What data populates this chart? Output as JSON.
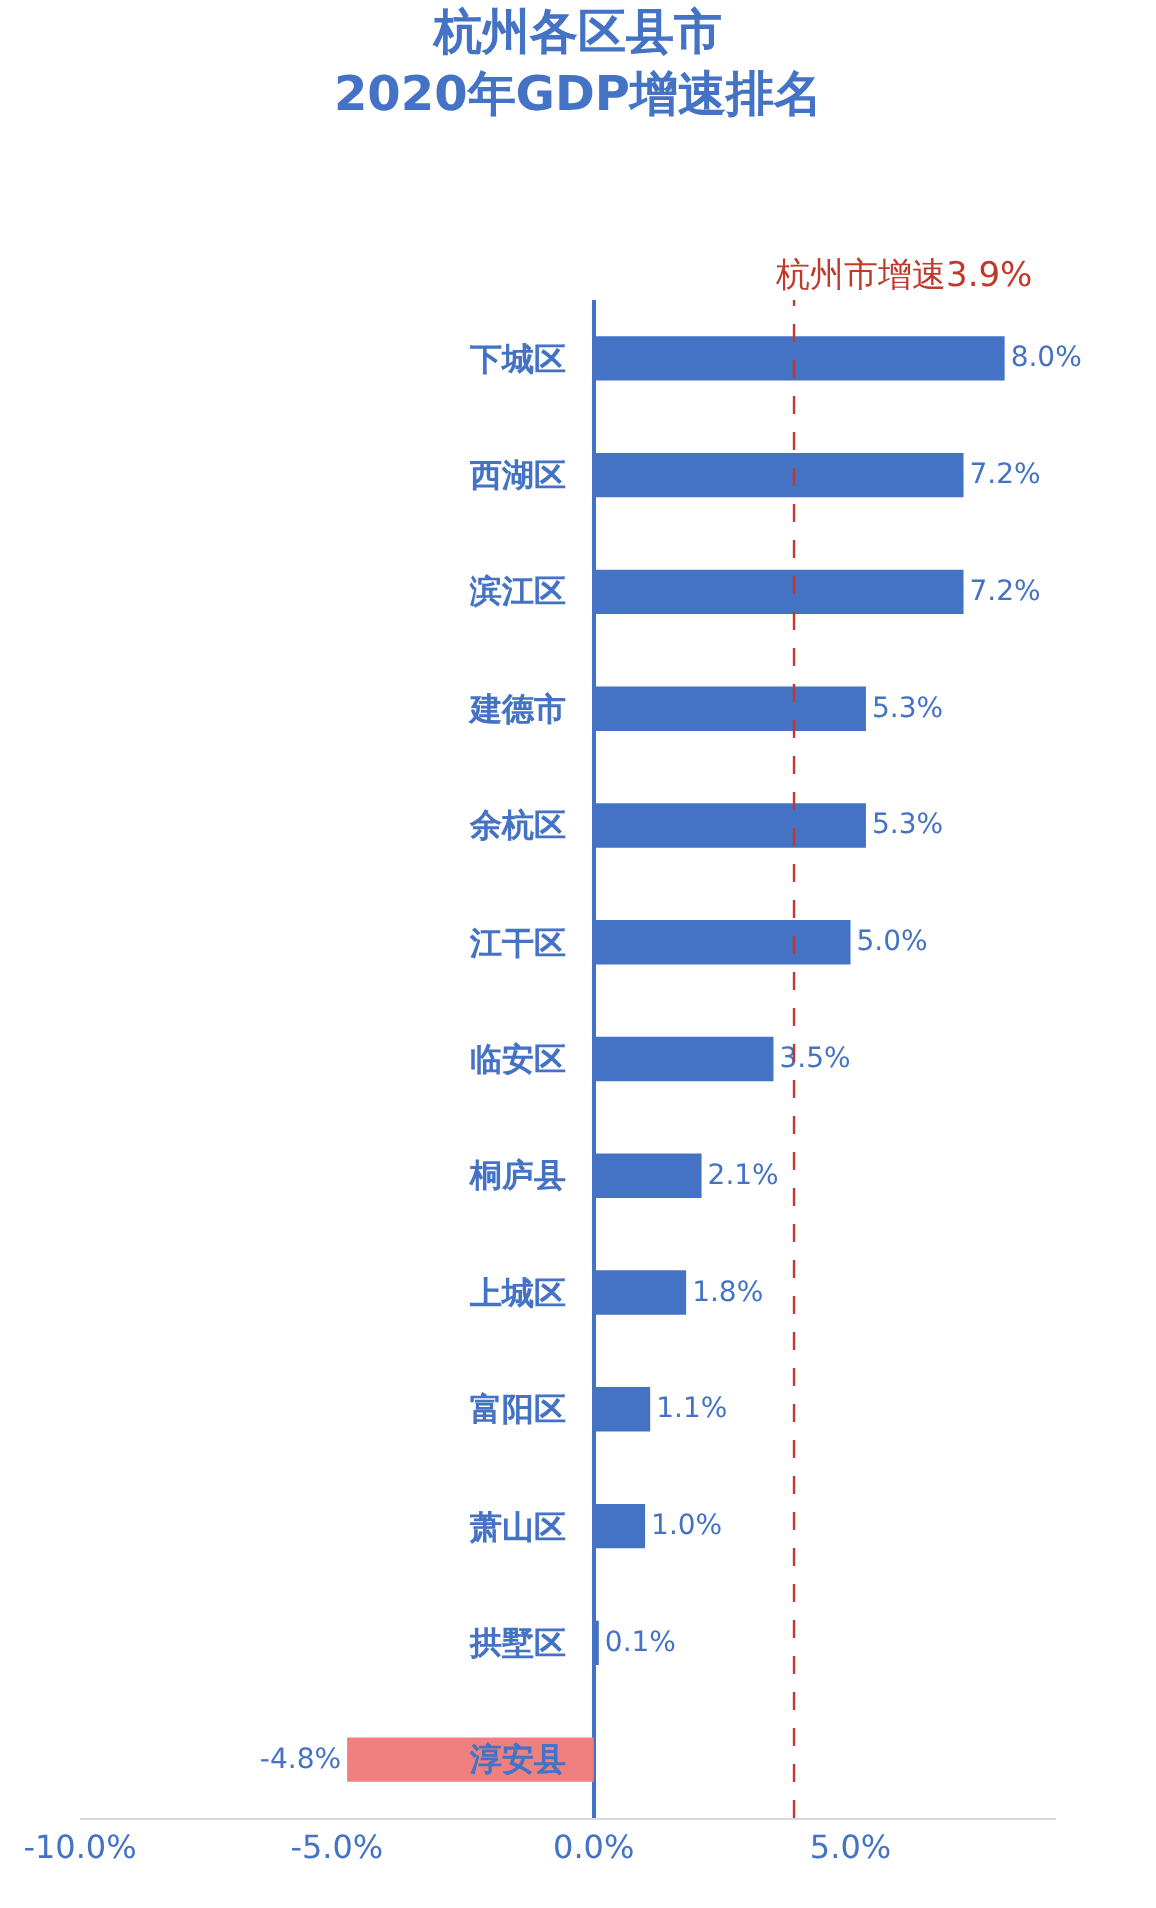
{
  "chart_data": {
    "type": "bar",
    "orientation": "horizontal",
    "title": "杭州各区县市\n2020年GDP增速排名",
    "categories": [
      "下城区",
      "西湖区",
      "滨江区",
      "建德市",
      "余杭区",
      "江干区",
      "临安区",
      "桐庐县",
      "上城区",
      "富阳区",
      "萧山区",
      "拱墅区",
      "淳安县"
    ],
    "values": [
      8.0,
      7.2,
      7.2,
      5.3,
      5.3,
      5.0,
      3.5,
      2.1,
      1.8,
      1.1,
      1.0,
      0.1,
      -4.8
    ],
    "colors": [
      "#4472c4",
      "#4472c4",
      "#4472c4",
      "#4472c4",
      "#4472c4",
      "#4472c4",
      "#4472c4",
      "#4472c4",
      "#4472c4",
      "#4472c4",
      "#4472c4",
      "#4472c4",
      "#f08080"
    ],
    "value_labels": [
      "8.0%",
      "7.2%",
      "7.2%",
      "5.3%",
      "5.3%",
      "5.0%",
      "3.5%",
      "2.1%",
      "1.8%",
      "1.1%",
      "1.0%",
      "0.1%",
      "-4.8%"
    ],
    "xlim": [
      -10,
      9
    ],
    "xticks": [
      {
        "value": -10,
        "label": "-10.0%"
      },
      {
        "value": -5,
        "label": "-5.0%"
      },
      {
        "value": 0,
        "label": "0.0%"
      },
      {
        "value": 5,
        "label": "5.0%"
      }
    ],
    "ref_lines": [
      {
        "axis": "x",
        "value": 3.9,
        "label": "杭州市增速3.9%",
        "color": "#c0392b",
        "line_style": "dashed"
      }
    ],
    "legend": false
  }
}
